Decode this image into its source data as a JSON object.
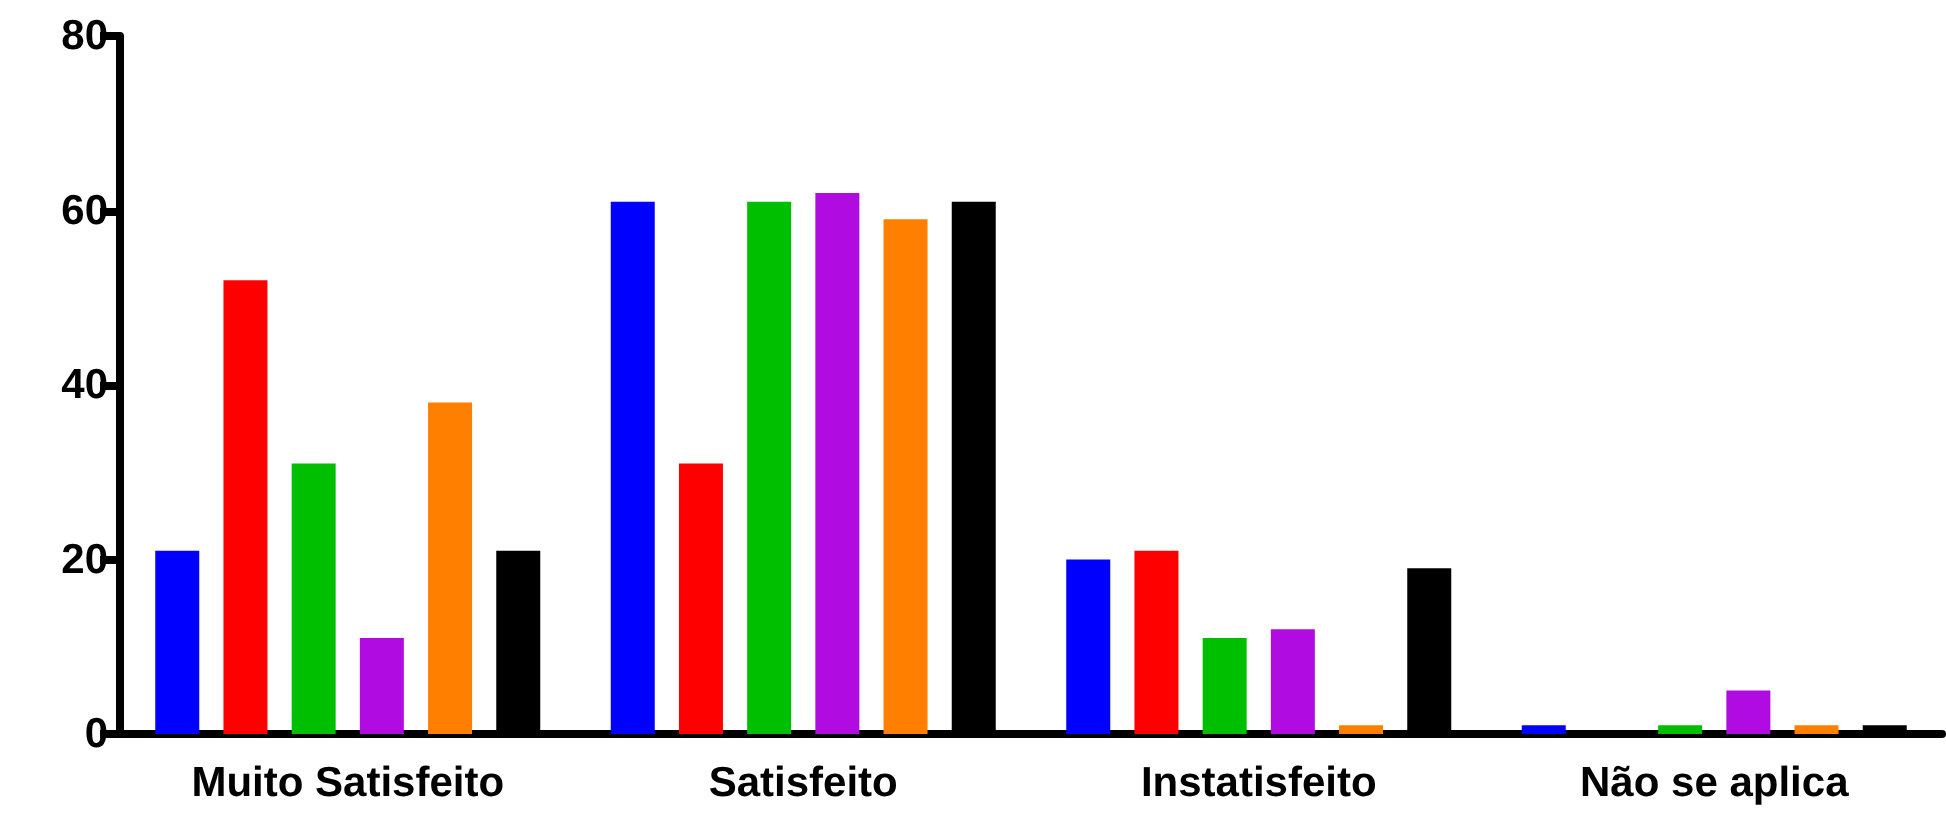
{
  "chart_data": {
    "type": "bar",
    "categories": [
      "Muito Satisfeito",
      "Satisfeito",
      "Instatisfeito",
      "Não se aplica"
    ],
    "series": [
      {
        "color": "#0000ff",
        "values": [
          21,
          61,
          20,
          1
        ]
      },
      {
        "color": "#ff0000",
        "values": [
          52,
          31,
          21,
          0
        ]
      },
      {
        "color": "#00bf00",
        "values": [
          31,
          61,
          11,
          1
        ]
      },
      {
        "color": "#b00be0",
        "values": [
          11,
          62,
          12,
          5
        ]
      },
      {
        "color": "#ff8000",
        "values": [
          38,
          59,
          1,
          1
        ]
      },
      {
        "color": "#000000",
        "values": [
          21,
          61,
          19,
          1
        ]
      }
    ],
    "ylim": [
      0,
      80
    ],
    "yticks": [
      0,
      20,
      40,
      60,
      80
    ]
  }
}
